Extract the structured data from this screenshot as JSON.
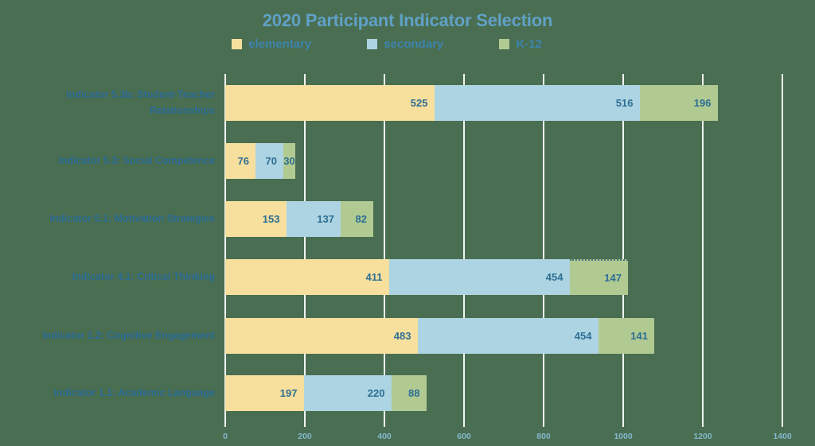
{
  "page": {
    "background": "#4a6e51"
  },
  "header": {
    "title": "2020 Participant Indicator Selection",
    "title_color": "#60a1c6"
  },
  "legend": {
    "text_color": "#3c84ad",
    "items": [
      {
        "label": "elementary",
        "color": "#f7df9d"
      },
      {
        "label": "secondary",
        "color": "#add4e2"
      },
      {
        "label": "K-12",
        "color": "#b0ca92"
      }
    ]
  },
  "chart_data": {
    "type": "bar",
    "orientation": "horizontal",
    "stacked": true,
    "title": "2020 Participant Indicator Selection",
    "categories": [
      "Indicator 5.3b: Student-Teacher Relationships",
      "Indicator 5.3: Social Competence",
      "Indicator 5.1: Motivation Strategies",
      "Indicator 4.1: Critical Thinking",
      "Indicator 1.2: Cognitive Engagement",
      "Indicator 1.1: Academic Language"
    ],
    "category_order": "top-to-bottom",
    "series": [
      {
        "name": "elementary",
        "color": "#f7df9d",
        "values": [
          525,
          76,
          153,
          411,
          483,
          197
        ]
      },
      {
        "name": "secondary",
        "color": "#add4e2",
        "values": [
          516,
          70,
          137,
          454,
          454,
          220
        ]
      },
      {
        "name": "K-12",
        "color": "#b0ca92",
        "values": [
          196,
          30,
          82,
          147,
          141,
          88
        ]
      }
    ],
    "xlim": [
      0,
      1400
    ],
    "x_ticks": [
      "0",
      "200",
      "400",
      "600",
      "800",
      "1000",
      "1200",
      "1400"
    ],
    "grid": true,
    "legend_position": "top",
    "selection": {
      "category_index": 3,
      "series_index": 2,
      "style": "dotted-top-border"
    },
    "colors": {
      "gridline": "#f2f6f3",
      "value_label": "#2d6e94",
      "category_label": "#2a6b94",
      "axis_label": "#83b9cf"
    }
  }
}
